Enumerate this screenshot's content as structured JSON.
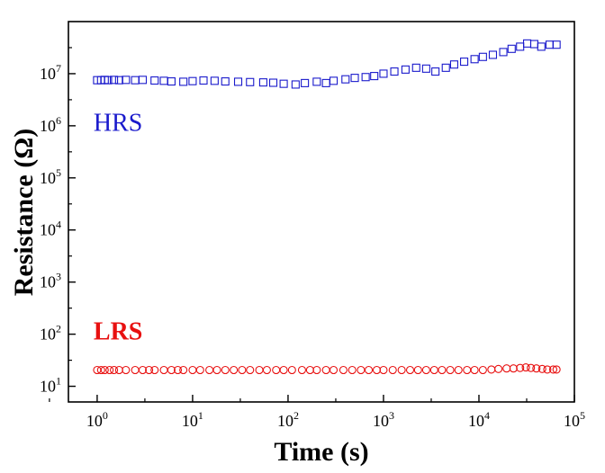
{
  "chart_data": {
    "type": "scatter",
    "title": "",
    "xlabel": "Time (s)",
    "ylabel": "Resistance (Ω)",
    "x_scale": "log",
    "y_scale": "log",
    "xlim": [
      0.5,
      100000
    ],
    "ylim": [
      5,
      100000000
    ],
    "x_ticks": [
      {
        "value": 1,
        "base": "10",
        "exp": "0"
      },
      {
        "value": 10,
        "base": "10",
        "exp": "1"
      },
      {
        "value": 100,
        "base": "10",
        "exp": "2"
      },
      {
        "value": 1000,
        "base": "10",
        "exp": "3"
      },
      {
        "value": 10000,
        "base": "10",
        "exp": "4"
      },
      {
        "value": 100000,
        "base": "10",
        "exp": "5"
      }
    ],
    "y_ticks": [
      {
        "value": 10,
        "base": "10",
        "exp": "1"
      },
      {
        "value": 100,
        "base": "10",
        "exp": "2"
      },
      {
        "value": 1000,
        "base": "10",
        "exp": "3"
      },
      {
        "value": 10000,
        "base": "10",
        "exp": "4"
      },
      {
        "value": 100000,
        "base": "10",
        "exp": "5"
      },
      {
        "value": 1000000,
        "base": "10",
        "exp": "6"
      },
      {
        "value": 10000000,
        "base": "10",
        "exp": "7"
      }
    ],
    "grid": false,
    "legend": "none",
    "series": [
      {
        "name": "HRS",
        "marker": "open-square",
        "color": "#1a1acc",
        "label_at": [
          1,
          1500000
        ],
        "x": [
          1,
          1.1,
          1.2,
          1.3,
          1.5,
          1.7,
          2,
          2.5,
          3,
          4,
          5,
          6,
          8,
          10,
          13,
          17,
          22,
          30,
          40,
          55,
          70,
          90,
          120,
          150,
          200,
          250,
          300,
          400,
          500,
          650,
          800,
          1000,
          1300,
          1700,
          2200,
          2800,
          3500,
          4500,
          5500,
          7000,
          9000,
          11000,
          14000,
          18000,
          22000,
          27000,
          32000,
          38000,
          45000,
          55000,
          65000
        ],
        "y": [
          7500000,
          7500000,
          7600000,
          7500000,
          7600000,
          7500000,
          7600000,
          7500000,
          7600000,
          7400000,
          7300000,
          7100000,
          7000000,
          7200000,
          7400000,
          7300000,
          7100000,
          7000000,
          6900000,
          6800000,
          6700000,
          6400000,
          6200000,
          6600000,
          7000000,
          6600000,
          7300000,
          7800000,
          8300000,
          8600000,
          9000000,
          10000000,
          11000000,
          12000000,
          13000000,
          12500000,
          11000000,
          13000000,
          15000000,
          17000000,
          19000000,
          21000000,
          23000000,
          26000000,
          30000000,
          33000000,
          38000000,
          37000000,
          33000000,
          36000000,
          36000000
        ]
      },
      {
        "name": "LRS",
        "marker": "open-circle",
        "color": "#e81010",
        "label_at": [
          1,
          150
        ],
        "x": [
          1,
          1.1,
          1.2,
          1.35,
          1.5,
          1.7,
          2,
          2.5,
          3,
          3.5,
          4,
          5,
          6,
          7,
          8,
          10,
          12,
          15,
          18,
          22,
          27,
          33,
          40,
          50,
          60,
          75,
          90,
          110,
          140,
          170,
          200,
          250,
          300,
          380,
          470,
          580,
          700,
          850,
          1000,
          1250,
          1550,
          1900,
          2300,
          2800,
          3400,
          4100,
          5000,
          6100,
          7500,
          9000,
          11000,
          13500,
          16000,
          19500,
          23000,
          27000,
          31000,
          35000,
          40000,
          46000,
          52000,
          60000,
          65000
        ],
        "y": [
          20.5,
          20.5,
          20.5,
          20.5,
          20.5,
          20.5,
          20.5,
          20.5,
          20.5,
          20.5,
          20.5,
          20.5,
          20.5,
          20.5,
          20.5,
          20.5,
          20.5,
          20.5,
          20.5,
          20.5,
          20.5,
          20.5,
          20.5,
          20.5,
          20.5,
          20.5,
          20.5,
          20.5,
          20.5,
          20.5,
          20.5,
          20.5,
          20.5,
          20.5,
          20.5,
          20.5,
          20.5,
          20.5,
          20.5,
          20.5,
          20.5,
          20.5,
          20.5,
          20.5,
          20.5,
          20.5,
          20.5,
          20.5,
          20.5,
          20.5,
          20.5,
          21,
          21.5,
          22,
          22,
          22.5,
          23,
          22.5,
          22,
          21.5,
          21,
          21,
          21
        ]
      }
    ]
  }
}
